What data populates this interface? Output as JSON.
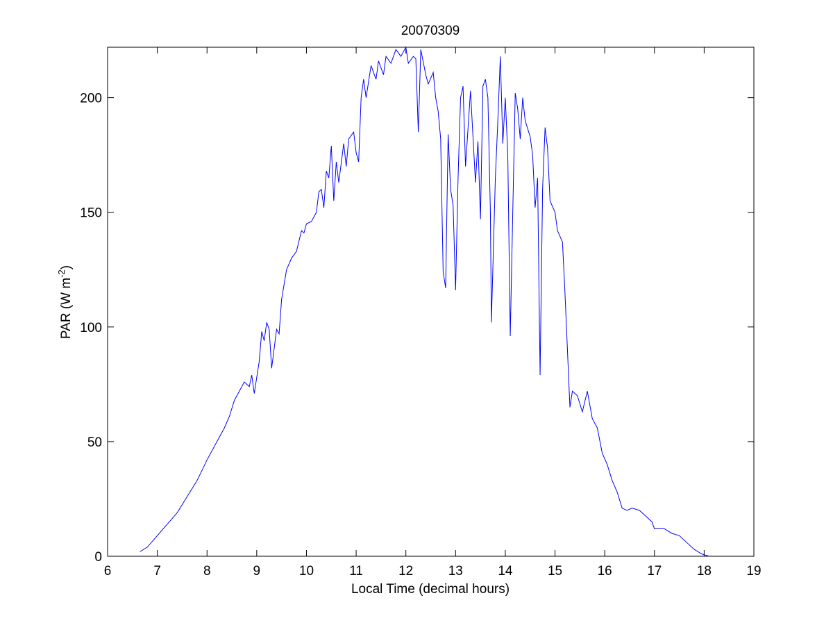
{
  "chart_data": {
    "type": "line",
    "title": "20070309",
    "xlabel": "Local Time (decimal hours)",
    "ylabel": {
      "text": "PAR (W m",
      "superscript": "-2",
      "suffix": ")"
    },
    "xlim": [
      6,
      19
    ],
    "xticks": [
      6,
      7,
      8,
      9,
      10,
      11,
      12,
      13,
      14,
      15,
      16,
      17,
      18,
      19
    ],
    "ylim": [
      0,
      222
    ],
    "yticks": [
      0,
      50,
      100,
      150,
      200
    ],
    "grid": false,
    "series": [
      {
        "color": "#0000ff",
        "x": [
          6.65,
          6.8,
          7.0,
          7.2,
          7.4,
          7.6,
          7.8,
          8.0,
          8.2,
          8.35,
          8.45,
          8.55,
          8.65,
          8.75,
          8.85,
          8.9,
          8.95,
          9.05,
          9.1,
          9.15,
          9.2,
          9.25,
          9.3,
          9.4,
          9.45,
          9.5,
          9.6,
          9.7,
          9.8,
          9.9,
          9.95,
          10.0,
          10.1,
          10.2,
          10.25,
          10.3,
          10.35,
          10.4,
          10.45,
          10.5,
          10.55,
          10.6,
          10.65,
          10.75,
          10.8,
          10.85,
          10.95,
          11.0,
          11.05,
          11.1,
          11.15,
          11.2,
          11.3,
          11.4,
          11.45,
          11.55,
          11.6,
          11.7,
          11.8,
          11.9,
          12.0,
          12.05,
          12.15,
          12.2,
          12.25,
          12.3,
          12.4,
          12.45,
          12.55,
          12.6,
          12.65,
          12.7,
          12.75,
          12.8,
          12.85,
          12.9,
          12.95,
          13.0,
          13.05,
          13.1,
          13.15,
          13.2,
          13.3,
          13.4,
          13.45,
          13.5,
          13.55,
          13.6,
          13.65,
          13.7,
          13.72,
          13.8,
          13.85,
          13.9,
          13.95,
          14.0,
          14.05,
          14.1,
          14.15,
          14.2,
          14.25,
          14.3,
          14.35,
          14.4,
          14.5,
          14.55,
          14.6,
          14.65,
          14.7,
          14.75,
          14.8,
          14.85,
          14.9,
          15.0,
          15.05,
          15.15,
          15.2,
          15.25,
          15.3,
          15.35,
          15.45,
          15.55,
          15.65,
          15.75,
          15.85,
          15.95,
          16.05,
          16.15,
          16.25,
          16.35,
          16.45,
          16.55,
          16.7,
          16.85,
          16.95,
          17.0,
          17.2,
          17.35,
          17.5,
          17.65,
          17.8,
          17.95,
          18.1
        ],
        "values": [
          2,
          4,
          9,
          14,
          19,
          26,
          33,
          42,
          50,
          56,
          61,
          68,
          72,
          76,
          74,
          79,
          71,
          85,
          98,
          94,
          102,
          99,
          82,
          99,
          97,
          112,
          125,
          130,
          133,
          142,
          141,
          145,
          146,
          150,
          159,
          160,
          152,
          168,
          165,
          179,
          155,
          172,
          163,
          180,
          170,
          182,
          185,
          176,
          172,
          200,
          208,
          200,
          214,
          208,
          216,
          210,
          218,
          215,
          221,
          218,
          222,
          215,
          218,
          217,
          185,
          221,
          210,
          206,
          211,
          200,
          194,
          182,
          124,
          117,
          184,
          160,
          153,
          116,
          165,
          200,
          205,
          170,
          203,
          163,
          181,
          147,
          205,
          208,
          200,
          150,
          102,
          165,
          190,
          218,
          180,
          200,
          175,
          96,
          150,
          202,
          195,
          182,
          200,
          190,
          183,
          175,
          152,
          165,
          79,
          160,
          187,
          178,
          155,
          150,
          142,
          137,
          115,
          90,
          65,
          72,
          70,
          63,
          72,
          60,
          56,
          45,
          40,
          33,
          28,
          21,
          20,
          21,
          20,
          17,
          15,
          12,
          12,
          10,
          9,
          6,
          3,
          1,
          0
        ]
      }
    ]
  }
}
